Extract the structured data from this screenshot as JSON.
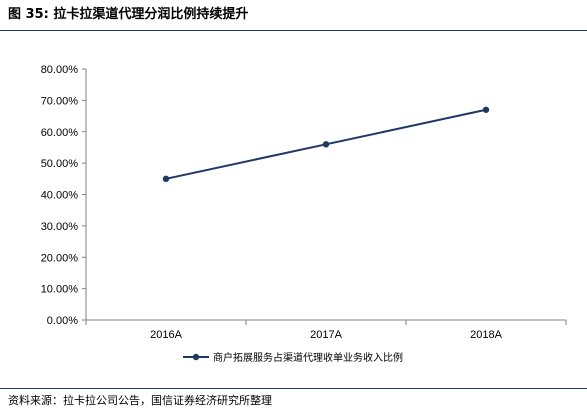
{
  "header": {
    "figure_title": "图 35:  拉卡拉渠道代理分润比例持续提升"
  },
  "footer": {
    "source": "资料来源：拉卡拉公司公告，国信证券经济研究所整理"
  },
  "colors": {
    "series": "#1f3864",
    "axis": "#808080",
    "rule": "#1f3864"
  },
  "chart_data": {
    "type": "line",
    "title": "",
    "xlabel": "",
    "ylabel": "",
    "categories": [
      "2016A",
      "2017A",
      "2018A"
    ],
    "series": [
      {
        "name": "商户拓展服务占渠道代理收单业务收入比例",
        "values": [
          45,
          56,
          67
        ],
        "marker": "circle"
      }
    ],
    "ylim": [
      0,
      80
    ],
    "yticks": [
      "0.00%",
      "10.00%",
      "20.00%",
      "30.00%",
      "40.00%",
      "50.00%",
      "60.00%",
      "70.00%",
      "80.00%"
    ],
    "grid": false,
    "legend_position": "bottom"
  }
}
